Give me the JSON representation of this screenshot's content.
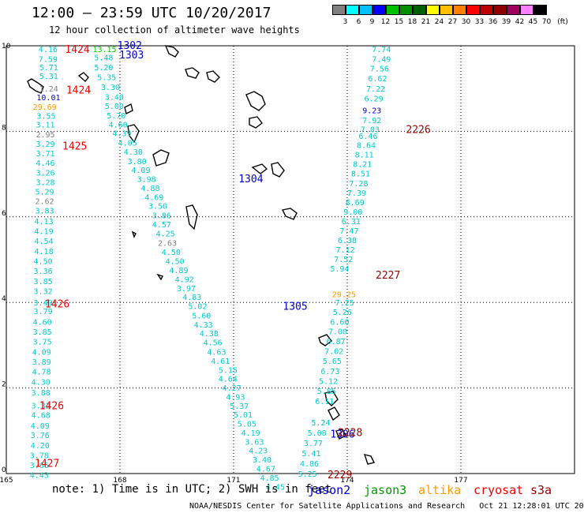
{
  "header": {
    "title": "12:00 – 23:59 UTC 10/20/2017",
    "subtitle": "12 hour collection of altimeter wave heights"
  },
  "colorbar": {
    "colors": [
      "#808080",
      "#00ffff",
      "#00c0ff",
      "#0000ff",
      "#00c000",
      "#009000",
      "#006000",
      "#ffff00",
      "#ffc000",
      "#ff8000",
      "#ff0000",
      "#c00000",
      "#900000",
      "#a00060",
      "#ff80ff",
      "#000000"
    ],
    "labels": [
      "3",
      "6",
      "9",
      "12",
      "15",
      "18",
      "21",
      "24",
      "27",
      "30",
      "33",
      "36",
      "39",
      "42",
      "45",
      "70"
    ],
    "unit": "(ft)"
  },
  "axes": {
    "x_ticks": [
      "165",
      "168",
      "171",
      "174",
      "177"
    ],
    "y_ticks": [
      "10",
      "8",
      "6",
      "4",
      "2",
      "0"
    ]
  },
  "legend": {
    "note": "note: 1) Time is in UTC; 2) SWH is in feet",
    "satellites": [
      {
        "name": "jason2",
        "color": "#0000cc"
      },
      {
        "name": "jason3",
        "color": "#009900"
      },
      {
        "name": "altika",
        "color": "#ff9900"
      },
      {
        "name": "cryosat",
        "color": "#ee0000"
      },
      {
        "name": "s3a",
        "color": "#990000"
      }
    ]
  },
  "credit": "NOAA/NESDIS Center for Satellite Applications and Research   Oct 21 12:28:01 UTC 2017",
  "track_labels": [
    {
      "text": "1424",
      "color": "#ee0000",
      "lon": 166.55,
      "lat": 9.93
    },
    {
      "text": "1424",
      "color": "#ee0000",
      "lon": 166.58,
      "lat": 8.98
    },
    {
      "text": "1425",
      "color": "#ee0000",
      "lon": 166.48,
      "lat": 7.67
    },
    {
      "text": "1426",
      "color": "#ee0000",
      "lon": 166.02,
      "lat": 3.98
    },
    {
      "text": "1426",
      "color": "#ee0000",
      "lon": 165.87,
      "lat": 1.6
    },
    {
      "text": "1427",
      "color": "#ee0000",
      "lon": 165.75,
      "lat": 0.25
    },
    {
      "text": "1302",
      "color": "#0000cc",
      "lon": 167.93,
      "lat": 10.02
    },
    {
      "text": "1303",
      "color": "#0000cc",
      "lon": 167.98,
      "lat": 9.8
    },
    {
      "text": "1304",
      "color": "#0000cc",
      "lon": 171.13,
      "lat": 6.9
    },
    {
      "text": "1305",
      "color": "#0000cc",
      "lon": 172.3,
      "lat": 3.92
    },
    {
      "text": "1306",
      "color": "#0000cc",
      "lon": 173.55,
      "lat": 0.93
    },
    {
      "text": "2226",
      "color": "#990000",
      "lon": 175.55,
      "lat": 8.05
    },
    {
      "text": "2227",
      "color": "#990000",
      "lon": 174.75,
      "lat": 4.65
    },
    {
      "text": "2228",
      "color": "#990000",
      "lon": 173.75,
      "lat": 0.97
    },
    {
      "text": "2229",
      "color": "#990000",
      "lon": 173.48,
      "lat": -0.02
    }
  ],
  "observations": [
    {
      "t": "4.16",
      "c": "#00cccc",
      "lon": 165.85,
      "lat": 9.93
    },
    {
      "t": "7.59",
      "c": "#00cccc",
      "lon": 165.85,
      "lat": 9.7
    },
    {
      "t": "5.71",
      "c": "#00cccc",
      "lon": 165.87,
      "lat": 9.5
    },
    {
      "t": "5.31",
      "c": "#00cccc",
      "lon": 165.87,
      "lat": 9.3
    },
    {
      "t": "1.24",
      "c": "#808080",
      "lon": 165.87,
      "lat": 9.0
    },
    {
      "t": "10.01",
      "c": "#0000cc",
      "lon": 165.8,
      "lat": 8.8
    },
    {
      "t": "29.69",
      "c": "#ff9900",
      "lon": 165.7,
      "lat": 8.58
    },
    {
      "t": "3.55",
      "c": "#00cccc",
      "lon": 165.8,
      "lat": 8.37
    },
    {
      "t": "3.11",
      "c": "#00cccc",
      "lon": 165.78,
      "lat": 8.16
    },
    {
      "t": "2.95",
      "c": "#808080",
      "lon": 165.78,
      "lat": 7.93
    },
    {
      "t": "3.29",
      "c": "#00cccc",
      "lon": 165.78,
      "lat": 7.71
    },
    {
      "t": "3.71",
      "c": "#00cccc",
      "lon": 165.78,
      "lat": 7.49
    },
    {
      "t": "4.46",
      "c": "#00cccc",
      "lon": 165.78,
      "lat": 7.27
    },
    {
      "t": "3.26",
      "c": "#00cccc",
      "lon": 165.78,
      "lat": 7.04
    },
    {
      "t": "3.28",
      "c": "#00cccc",
      "lon": 165.78,
      "lat": 6.82
    },
    {
      "t": "5.29",
      "c": "#00cccc",
      "lon": 165.76,
      "lat": 6.6
    },
    {
      "t": "2.62",
      "c": "#808080",
      "lon": 165.76,
      "lat": 6.37
    },
    {
      "t": "3.83",
      "c": "#00cccc",
      "lon": 165.76,
      "lat": 6.15
    },
    {
      "t": "4.13",
      "c": "#00cccc",
      "lon": 165.74,
      "lat": 5.9
    },
    {
      "t": "4.19",
      "c": "#00cccc",
      "lon": 165.74,
      "lat": 5.67
    },
    {
      "t": "4.54",
      "c": "#00cccc",
      "lon": 165.74,
      "lat": 5.44
    },
    {
      "t": "4.18",
      "c": "#00cccc",
      "lon": 165.74,
      "lat": 5.2
    },
    {
      "t": "4.50",
      "c": "#00cccc",
      "lon": 165.72,
      "lat": 4.97
    },
    {
      "t": "3.36",
      "c": "#00cccc",
      "lon": 165.72,
      "lat": 4.74
    },
    {
      "t": "3.85",
      "c": "#00cccc",
      "lon": 165.72,
      "lat": 4.5
    },
    {
      "t": "3.32",
      "c": "#00cccc",
      "lon": 165.72,
      "lat": 4.27
    },
    {
      "t": "3.49",
      "c": "#00cccc",
      "lon": 165.72,
      "lat": 4.0
    },
    {
      "t": "3.79",
      "c": "#00cccc",
      "lon": 165.72,
      "lat": 3.8
    },
    {
      "t": "4.60",
      "c": "#00cccc",
      "lon": 165.7,
      "lat": 3.55
    },
    {
      "t": "3.85",
      "c": "#00cccc",
      "lon": 165.7,
      "lat": 3.32
    },
    {
      "t": "3.75",
      "c": "#00cccc",
      "lon": 165.7,
      "lat": 3.09
    },
    {
      "t": "4.09",
      "c": "#00cccc",
      "lon": 165.68,
      "lat": 2.85
    },
    {
      "t": "3.89",
      "c": "#00cccc",
      "lon": 165.68,
      "lat": 2.62
    },
    {
      "t": "4.78",
      "c": "#00cccc",
      "lon": 165.68,
      "lat": 2.39
    },
    {
      "t": "4.30",
      "c": "#00cccc",
      "lon": 165.66,
      "lat": 2.15
    },
    {
      "t": "3.88",
      "c": "#00cccc",
      "lon": 165.66,
      "lat": 1.9
    },
    {
      "t": "3.32",
      "c": "#00cccc",
      "lon": 165.66,
      "lat": 1.6
    },
    {
      "t": "4.68",
      "c": "#00cccc",
      "lon": 165.66,
      "lat": 1.37
    },
    {
      "t": "4.09",
      "c": "#00cccc",
      "lon": 165.64,
      "lat": 1.13
    },
    {
      "t": "3.76",
      "c": "#00cccc",
      "lon": 165.64,
      "lat": 0.9
    },
    {
      "t": "4.20",
      "c": "#00cccc",
      "lon": 165.64,
      "lat": 0.66
    },
    {
      "t": "3.78",
      "c": "#00cccc",
      "lon": 165.62,
      "lat": 0.43
    },
    {
      "t": "3.66",
      "c": "#00cccc",
      "lon": 165.62,
      "lat": 0.2
    },
    {
      "t": "4.43",
      "c": "#00cccc",
      "lon": 165.62,
      "lat": -0.03
    },
    {
      "t": "13.15",
      "c": "#00cc00",
      "lon": 167.28,
      "lat": 9.93
    },
    {
      "t": "5.48",
      "c": "#00cccc",
      "lon": 167.32,
      "lat": 9.73
    },
    {
      "t": "5.20",
      "c": "#00cccc",
      "lon": 167.32,
      "lat": 9.5
    },
    {
      "t": "5.35",
      "c": "#00cccc",
      "lon": 167.4,
      "lat": 9.27
    },
    {
      "t": "3.30",
      "c": "#00cccc",
      "lon": 167.5,
      "lat": 9.04
    },
    {
      "t": "3.40",
      "c": "#00cccc",
      "lon": 167.6,
      "lat": 8.81
    },
    {
      "t": "5.00",
      "c": "#00cccc",
      "lon": 167.6,
      "lat": 8.6
    },
    {
      "t": "5.70",
      "c": "#00cccc",
      "lon": 167.65,
      "lat": 8.38
    },
    {
      "t": "4.60",
      "c": "#00cccc",
      "lon": 167.7,
      "lat": 8.16
    },
    {
      "t": "4.39",
      "c": "#00cccc",
      "lon": 167.8,
      "lat": 7.96
    },
    {
      "t": "4.05",
      "c": "#00cccc",
      "lon": 167.95,
      "lat": 7.74
    },
    {
      "t": "4.30",
      "c": "#00cccc",
      "lon": 168.1,
      "lat": 7.53
    },
    {
      "t": "3.80",
      "c": "#00cccc",
      "lon": 168.2,
      "lat": 7.31
    },
    {
      "t": "4.09",
      "c": "#00cccc",
      "lon": 168.3,
      "lat": 7.1
    },
    {
      "t": "3.98",
      "c": "#00cccc",
      "lon": 168.45,
      "lat": 6.89
    },
    {
      "t": "4.88",
      "c": "#00cccc",
      "lon": 168.55,
      "lat": 6.68
    },
    {
      "t": "4.69",
      "c": "#00cccc",
      "lon": 168.65,
      "lat": 6.47
    },
    {
      "t": "3.50",
      "c": "#00cccc",
      "lon": 168.75,
      "lat": 6.26
    },
    {
      "t": "3.86",
      "c": "#00cccc",
      "lon": 168.85,
      "lat": 6.04
    },
    {
      "t": "4.57",
      "c": "#00cccc",
      "lon": 168.85,
      "lat": 5.83
    },
    {
      "t": "4.25",
      "c": "#00cccc",
      "lon": 168.95,
      "lat": 5.62
    },
    {
      "t": "2.63",
      "c": "#808080",
      "lon": 169.0,
      "lat": 5.4
    },
    {
      "t": "4.50",
      "c": "#00cccc",
      "lon": 169.1,
      "lat": 5.18
    },
    {
      "t": "4.50",
      "c": "#00cccc",
      "lon": 169.2,
      "lat": 4.97
    },
    {
      "t": "4.89",
      "c": "#00cccc",
      "lon": 169.3,
      "lat": 4.76
    },
    {
      "t": "4.92",
      "c": "#00cccc",
      "lon": 169.45,
      "lat": 4.55
    },
    {
      "t": "3.97",
      "c": "#00cccc",
      "lon": 169.5,
      "lat": 4.34
    },
    {
      "t": "4.83",
      "c": "#00cccc",
      "lon": 169.65,
      "lat": 4.13
    },
    {
      "t": "5.02",
      "c": "#00cccc",
      "lon": 169.8,
      "lat": 3.92
    },
    {
      "t": "5.60",
      "c": "#00cccc",
      "lon": 169.9,
      "lat": 3.7
    },
    {
      "t": "4.33",
      "c": "#00cccc",
      "lon": 169.95,
      "lat": 3.49
    },
    {
      "t": "4.38",
      "c": "#00cccc",
      "lon": 170.1,
      "lat": 3.28
    },
    {
      "t": "4.56",
      "c": "#00cccc",
      "lon": 170.2,
      "lat": 3.07
    },
    {
      "t": "4.63",
      "c": "#00cccc",
      "lon": 170.3,
      "lat": 2.85
    },
    {
      "t": "4.61",
      "c": "#00cccc",
      "lon": 170.4,
      "lat": 2.64
    },
    {
      "t": "5.15",
      "c": "#00cccc",
      "lon": 170.6,
      "lat": 2.43
    },
    {
      "t": "4.64",
      "c": "#00cccc",
      "lon": 170.6,
      "lat": 2.22
    },
    {
      "t": "4.27",
      "c": "#00cccc",
      "lon": 170.7,
      "lat": 2.01
    },
    {
      "t": "4.93",
      "c": "#00cccc",
      "lon": 170.8,
      "lat": 1.8
    },
    {
      "t": "5.37",
      "c": "#00cccc",
      "lon": 170.9,
      "lat": 1.59
    },
    {
      "t": "5.01",
      "c": "#00cccc",
      "lon": 171.0,
      "lat": 1.38
    },
    {
      "t": "5.05",
      "c": "#00cccc",
      "lon": 171.1,
      "lat": 1.17
    },
    {
      "t": "4.19",
      "c": "#00cccc",
      "lon": 171.2,
      "lat": 0.96
    },
    {
      "t": "3.63",
      "c": "#00cccc",
      "lon": 171.3,
      "lat": 0.75
    },
    {
      "t": "4.23",
      "c": "#00cccc",
      "lon": 171.4,
      "lat": 0.54
    },
    {
      "t": "3.40",
      "c": "#00cccc",
      "lon": 171.5,
      "lat": 0.33
    },
    {
      "t": "4.67",
      "c": "#00cccc",
      "lon": 171.6,
      "lat": 0.12
    },
    {
      "t": "4.85",
      "c": "#00cccc",
      "lon": 171.7,
      "lat": -0.09
    },
    {
      "t": "4.45",
      "c": "#00cccc",
      "lon": 171.85,
      "lat": -0.3
    },
    {
      "t": "7.74",
      "c": "#00cccc",
      "lon": 174.65,
      "lat": 9.93
    },
    {
      "t": "7.49",
      "c": "#00cccc",
      "lon": 174.65,
      "lat": 9.7
    },
    {
      "t": "7.56",
      "c": "#00cccc",
      "lon": 174.6,
      "lat": 9.47
    },
    {
      "t": "6.62",
      "c": "#00cccc",
      "lon": 174.55,
      "lat": 9.24
    },
    {
      "t": "7.22",
      "c": "#00cccc",
      "lon": 174.5,
      "lat": 9.0
    },
    {
      "t": "6.29",
      "c": "#00cccc",
      "lon": 174.45,
      "lat": 8.77
    },
    {
      "t": "9.23",
      "c": "#0000cc",
      "lon": 174.4,
      "lat": 8.5
    },
    {
      "t": "7.92",
      "c": "#00cccc",
      "lon": 174.4,
      "lat": 8.27
    },
    {
      "t": "7.03",
      "c": "#00cccc",
      "lon": 174.35,
      "lat": 8.05
    },
    {
      "t": "6.46",
      "c": "#00cccc",
      "lon": 174.3,
      "lat": 7.9
    },
    {
      "t": "8.64",
      "c": "#00cccc",
      "lon": 174.25,
      "lat": 7.68
    },
    {
      "t": "8.11",
      "c": "#00cccc",
      "lon": 174.2,
      "lat": 7.46
    },
    {
      "t": "8.21",
      "c": "#00cccc",
      "lon": 174.15,
      "lat": 7.24
    },
    {
      "t": "8.51",
      "c": "#00cccc",
      "lon": 174.1,
      "lat": 7.02
    },
    {
      "t": "7.28",
      "c": "#00cccc",
      "lon": 174.05,
      "lat": 6.79
    },
    {
      "t": "7.39",
      "c": "#00cccc",
      "lon": 174.0,
      "lat": 6.57
    },
    {
      "t": "8.69",
      "c": "#00cccc",
      "lon": 173.95,
      "lat": 6.35
    },
    {
      "t": "9.00",
      "c": "#00cccc",
      "lon": 173.9,
      "lat": 6.13
    },
    {
      "t": "6.31",
      "c": "#00cccc",
      "lon": 173.85,
      "lat": 5.9
    },
    {
      "t": "7.47",
      "c": "#00cccc",
      "lon": 173.8,
      "lat": 5.68
    },
    {
      "t": "6.38",
      "c": "#00cccc",
      "lon": 173.75,
      "lat": 5.46
    },
    {
      "t": "7.12",
      "c": "#00cccc",
      "lon": 173.7,
      "lat": 5.24
    },
    {
      "t": "7.52",
      "c": "#00cccc",
      "lon": 173.65,
      "lat": 5.02
    },
    {
      "t": "5.94",
      "c": "#00cccc",
      "lon": 173.55,
      "lat": 4.8
    },
    {
      "t": "29.25",
      "c": "#ff9900",
      "lon": 173.6,
      "lat": 4.2
    },
    {
      "t": "7.25",
      "c": "#00cccc",
      "lon": 173.68,
      "lat": 4.0
    },
    {
      "t": "5.26",
      "c": "#00cccc",
      "lon": 173.62,
      "lat": 3.78
    },
    {
      "t": "6.60",
      "c": "#00cccc",
      "lon": 173.55,
      "lat": 3.55
    },
    {
      "t": "7.00",
      "c": "#00cccc",
      "lon": 173.5,
      "lat": 3.33
    },
    {
      "t": "6.87",
      "c": "#00cccc",
      "lon": 173.45,
      "lat": 3.1
    },
    {
      "t": "7.02",
      "c": "#00cccc",
      "lon": 173.4,
      "lat": 2.87
    },
    {
      "t": "5.65",
      "c": "#00cccc",
      "lon": 173.35,
      "lat": 2.64
    },
    {
      "t": "6.73",
      "c": "#00cccc",
      "lon": 173.3,
      "lat": 2.4
    },
    {
      "t": "5.12",
      "c": "#00cccc",
      "lon": 173.25,
      "lat": 2.17
    },
    {
      "t": "5.85",
      "c": "#00cccc",
      "lon": 173.2,
      "lat": 1.94
    },
    {
      "t": "6.11",
      "c": "#00cccc",
      "lon": 173.15,
      "lat": 1.7
    },
    {
      "t": "5.24",
      "c": "#00cccc",
      "lon": 173.05,
      "lat": 1.2
    },
    {
      "t": "5.08",
      "c": "#00cccc",
      "lon": 172.95,
      "lat": 0.96
    },
    {
      "t": "3.77",
      "c": "#00cccc",
      "lon": 172.85,
      "lat": 0.72
    },
    {
      "t": "5.41",
      "c": "#00cccc",
      "lon": 172.8,
      "lat": 0.48
    },
    {
      "t": "4.86",
      "c": "#00cccc",
      "lon": 172.75,
      "lat": 0.24
    },
    {
      "t": "5.25",
      "c": "#00cccc",
      "lon": 172.7,
      "lat": 0.0
    }
  ]
}
